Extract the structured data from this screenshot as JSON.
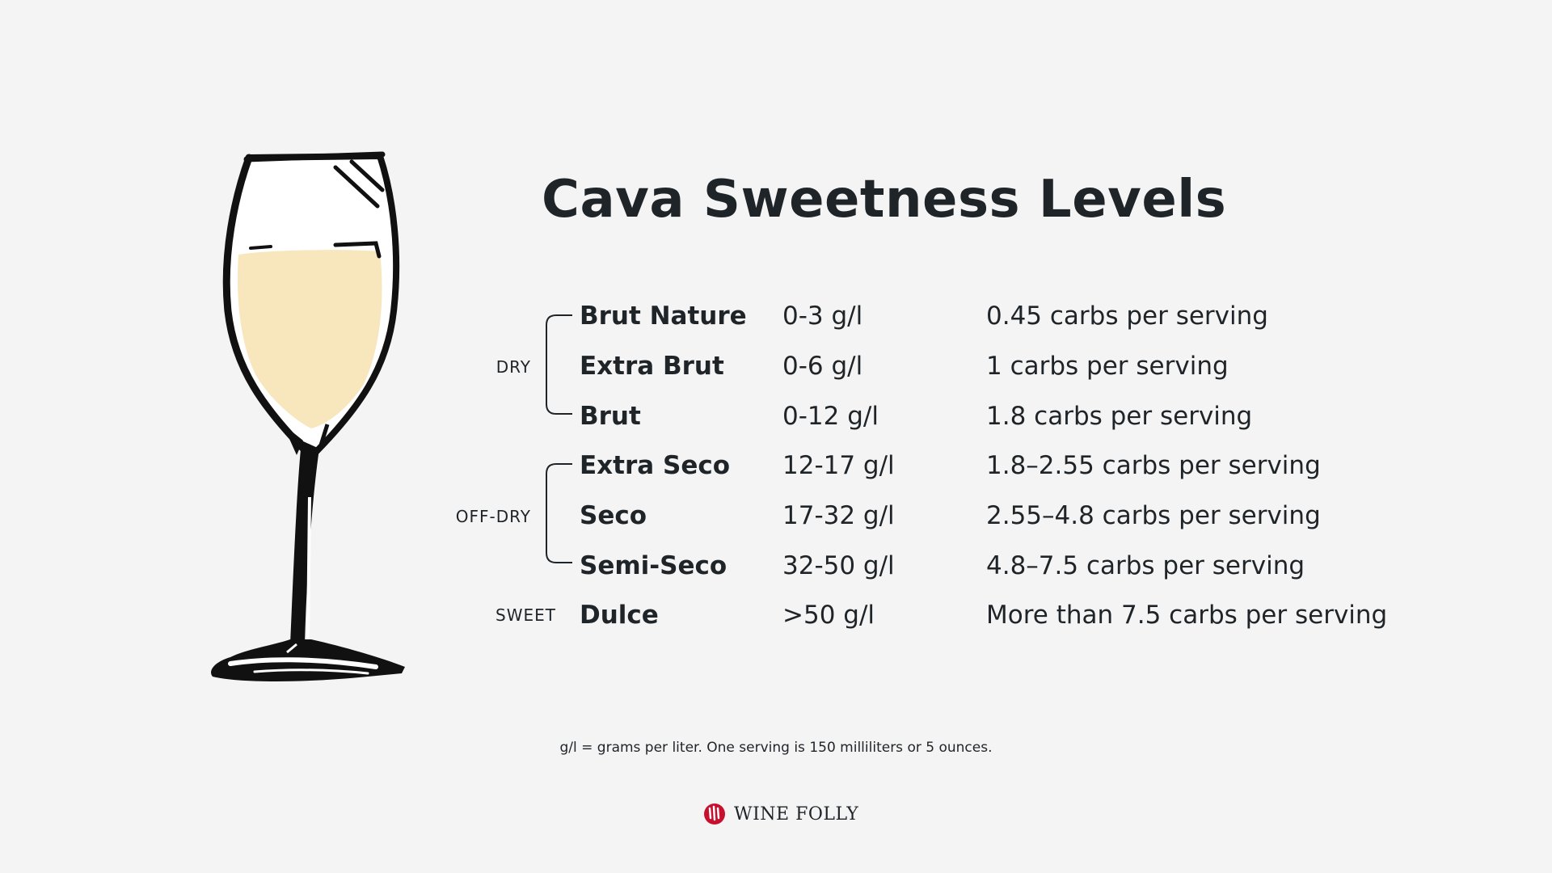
{
  "title": "Cava Sweetness Levels",
  "groups": [
    {
      "label": "DRY"
    },
    {
      "label": "OFF-DRY"
    },
    {
      "label": "SWEET"
    }
  ],
  "levels": [
    {
      "name": "Brut Nature",
      "sugar": "0-3 g/l",
      "carbs": "0.45 carbs per serving"
    },
    {
      "name": "Extra Brut",
      "sugar": "0-6 g/l",
      "carbs": "1 carbs per serving"
    },
    {
      "name": "Brut",
      "sugar": "0-12 g/l",
      "carbs": "1.8 carbs per serving"
    },
    {
      "name": "Extra Seco",
      "sugar": "12-17 g/l",
      "carbs": "1.8–2.55 carbs per serving"
    },
    {
      "name": "Seco",
      "sugar": "17-32 g/l",
      "carbs": "2.55–4.8 carbs per serving"
    },
    {
      "name": "Semi-Seco",
      "sugar": "32-50 g/l",
      "carbs": "4.8–7.5 carbs per serving"
    },
    {
      "name": "Dulce",
      "sugar": ">50  g/l",
      "carbs": "More than 7.5 carbs per serving"
    }
  ],
  "footnote": "g/l = grams per liter. One serving is 150 milliliters or 5 ounces.",
  "brand": {
    "name": "WINE FOLLY",
    "logo_icon": "wine-folly-logo-icon"
  },
  "colors": {
    "background": "#f4f4f4",
    "text": "#1f2428",
    "wine": "#f8e6bd",
    "logo": "#c8102e"
  }
}
